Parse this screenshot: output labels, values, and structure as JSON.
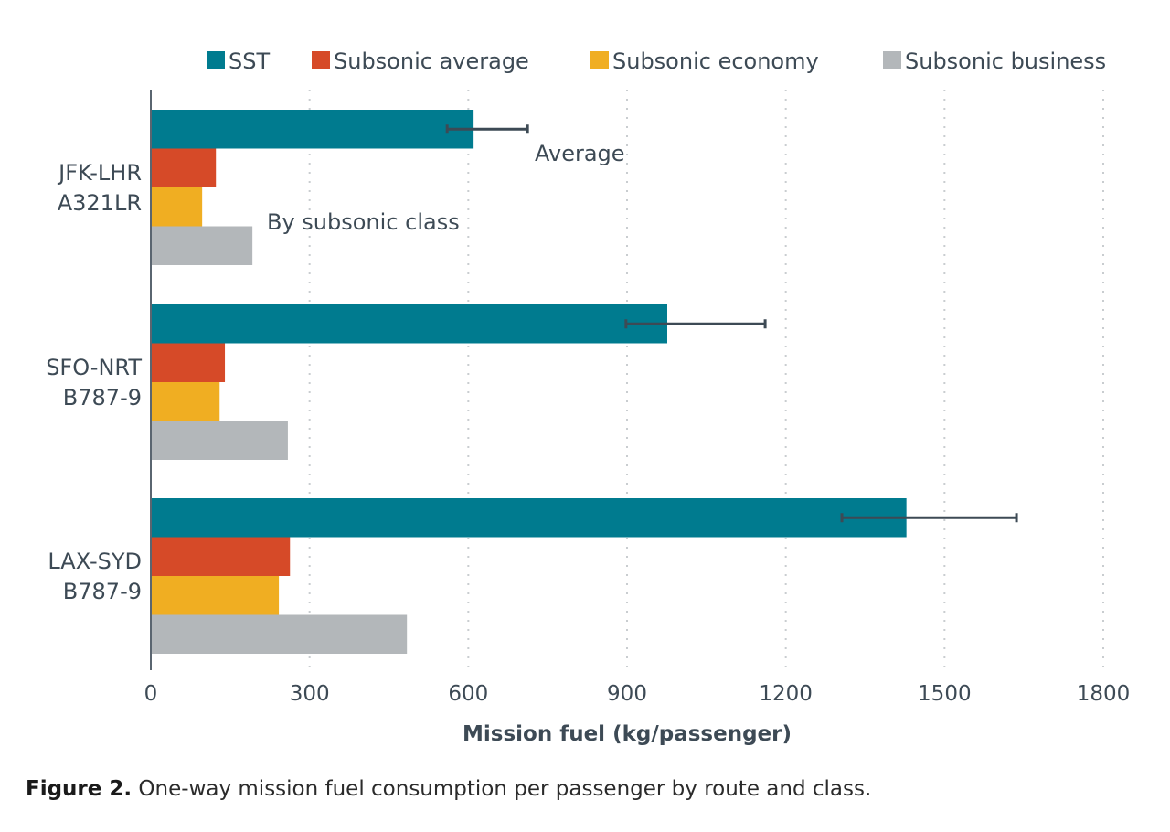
{
  "chart_data": {
    "type": "bar",
    "orientation": "horizontal",
    "categories": [
      [
        "JFK-LHR",
        "A321LR"
      ],
      [
        "SFO-NRT",
        "B787-9"
      ],
      [
        "LAX-SYD",
        "B787-9"
      ]
    ],
    "series": [
      {
        "name": "SST",
        "color": "#007b8f",
        "values": [
          610,
          976,
          1428
        ],
        "error_low": [
          560,
          898,
          1306
        ],
        "error_high": [
          712,
          1161,
          1636
        ]
      },
      {
        "name": "Subsonic average",
        "color": "#d64a28",
        "values": [
          123,
          140,
          263
        ]
      },
      {
        "name": "Subsonic economy",
        "color": "#f0ae22",
        "values": [
          97,
          130,
          242
        ]
      },
      {
        "name": "Subsonic business",
        "color": "#b3b7ba",
        "values": [
          192,
          259,
          484
        ]
      }
    ],
    "xlabel": "Mission fuel (kg/passenger)",
    "xlim": [
      0,
      1800
    ],
    "xticks": [
      0,
      300,
      600,
      900,
      1200,
      1500,
      1800
    ],
    "grid": "vertical dotted",
    "legend": "top",
    "annotations": [
      "Average",
      "By subsonic class"
    ]
  },
  "caption": {
    "label": "Figure 2.",
    "text": " One-way mission fuel consumption per passenger by route and class."
  }
}
